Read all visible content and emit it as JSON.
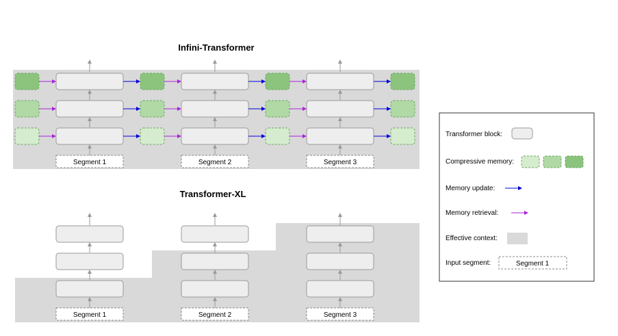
{
  "infini": {
    "title": "Infini-Transformer",
    "segments": [
      "Segment 1",
      "Segment 2",
      "Segment 3"
    ]
  },
  "xl": {
    "title": "Transformer-XL",
    "segments": [
      "Segment 1",
      "Segment 2",
      "Segment 3"
    ]
  },
  "legend": {
    "transformer_block": "Transformer block:",
    "compressive_memory": "Compressive memory:",
    "memory_update": "Memory update:",
    "memory_retrieval": "Memory retrieval:",
    "effective_context": "Effective context:",
    "input_segment": "Input segment:",
    "input_segment_example": "Segment 1"
  },
  "colors": {
    "context_bg": "#d9d9d9",
    "block_fill": "#eeeeef",
    "block_stroke": "#999999",
    "mem_light": "#d5ecce",
    "mem_mid": "#b0d9a5",
    "mem_dark": "#8cc47e",
    "mem_stroke": "#6aa85e",
    "update_arrow": "#0000dd",
    "retrieval_arrow": "#aa22dd",
    "flow_arrow": "#999999"
  }
}
